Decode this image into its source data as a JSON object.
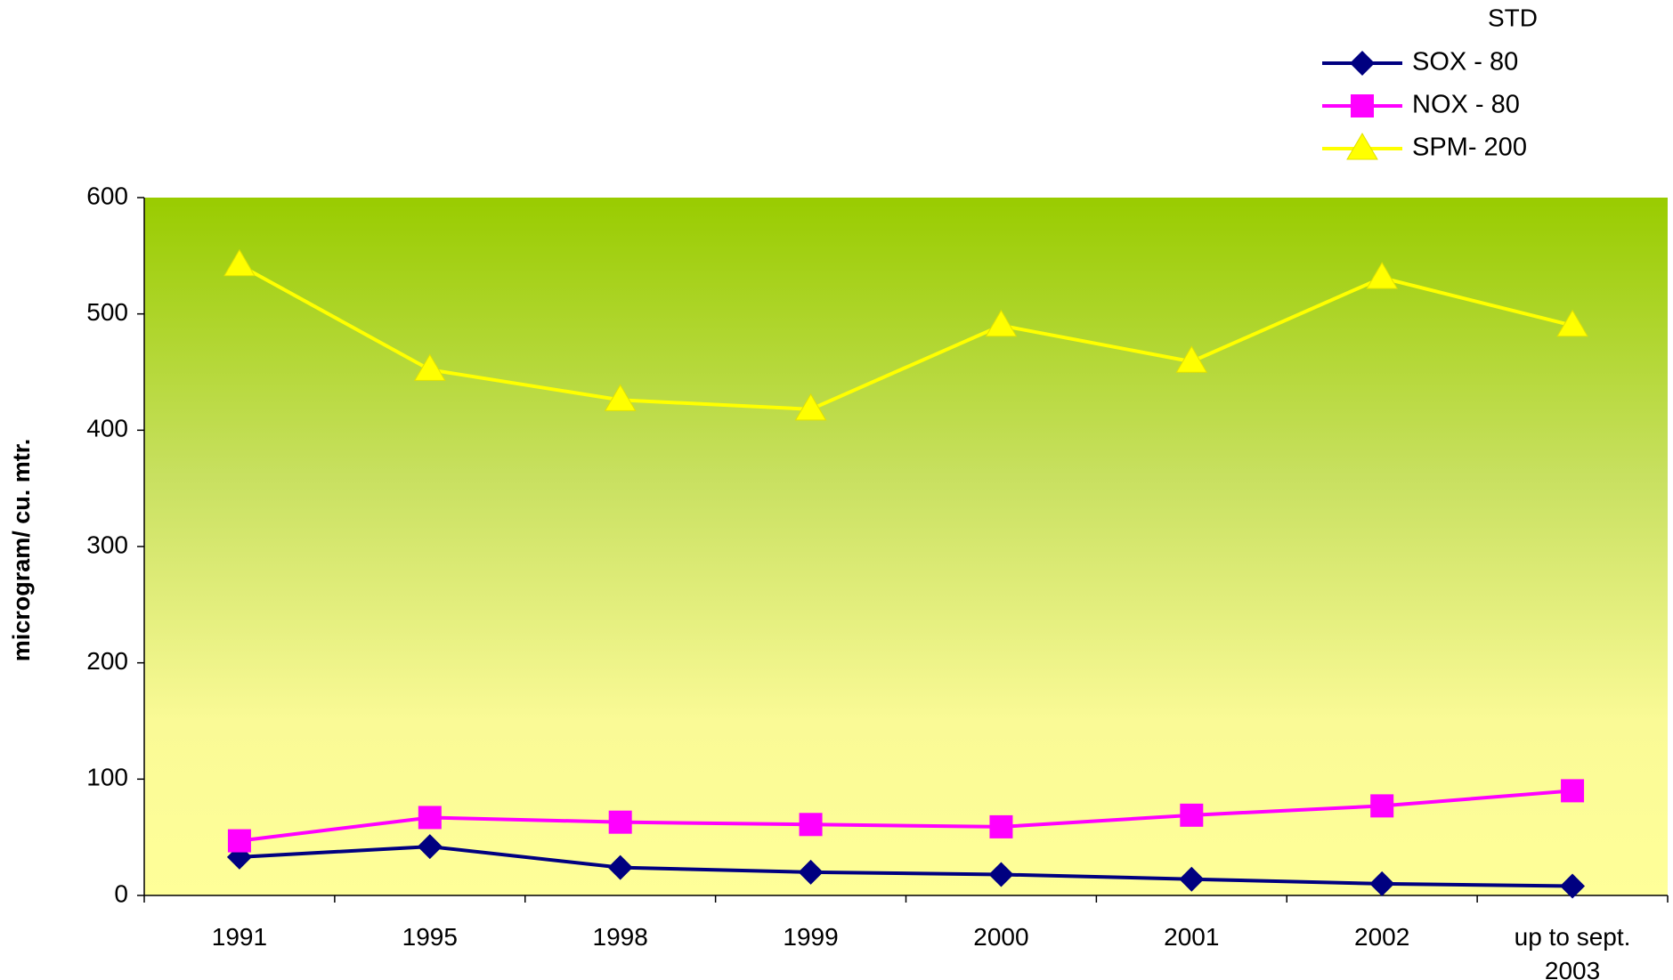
{
  "chart_data": {
    "type": "line",
    "legend_title": "STD",
    "y_label": "microgram/ cu. mtr.",
    "categories": [
      "1991",
      "1995",
      "1998",
      "1999",
      "2000",
      "2001",
      "2002",
      "up to sept. 2003"
    ],
    "series": [
      {
        "name": "SOX - 80",
        "color": "#000080",
        "marker": "diamond",
        "values": [
          33,
          42,
          24,
          20,
          18,
          14,
          10,
          8
        ]
      },
      {
        "name": "NOX - 80",
        "color": "#ff00ff",
        "marker": "square",
        "values": [
          47,
          67,
          63,
          61,
          59,
          69,
          77,
          90
        ]
      },
      {
        "name": "SPM- 200",
        "color": "#ffff00",
        "marker": "triangle",
        "values": [
          542,
          452,
          426,
          418,
          490,
          459,
          531,
          490
        ]
      }
    ],
    "ylim": [
      0,
      600
    ],
    "yticks": [
      0,
      100,
      200,
      300,
      400,
      500,
      600
    ],
    "legend": "top right"
  }
}
